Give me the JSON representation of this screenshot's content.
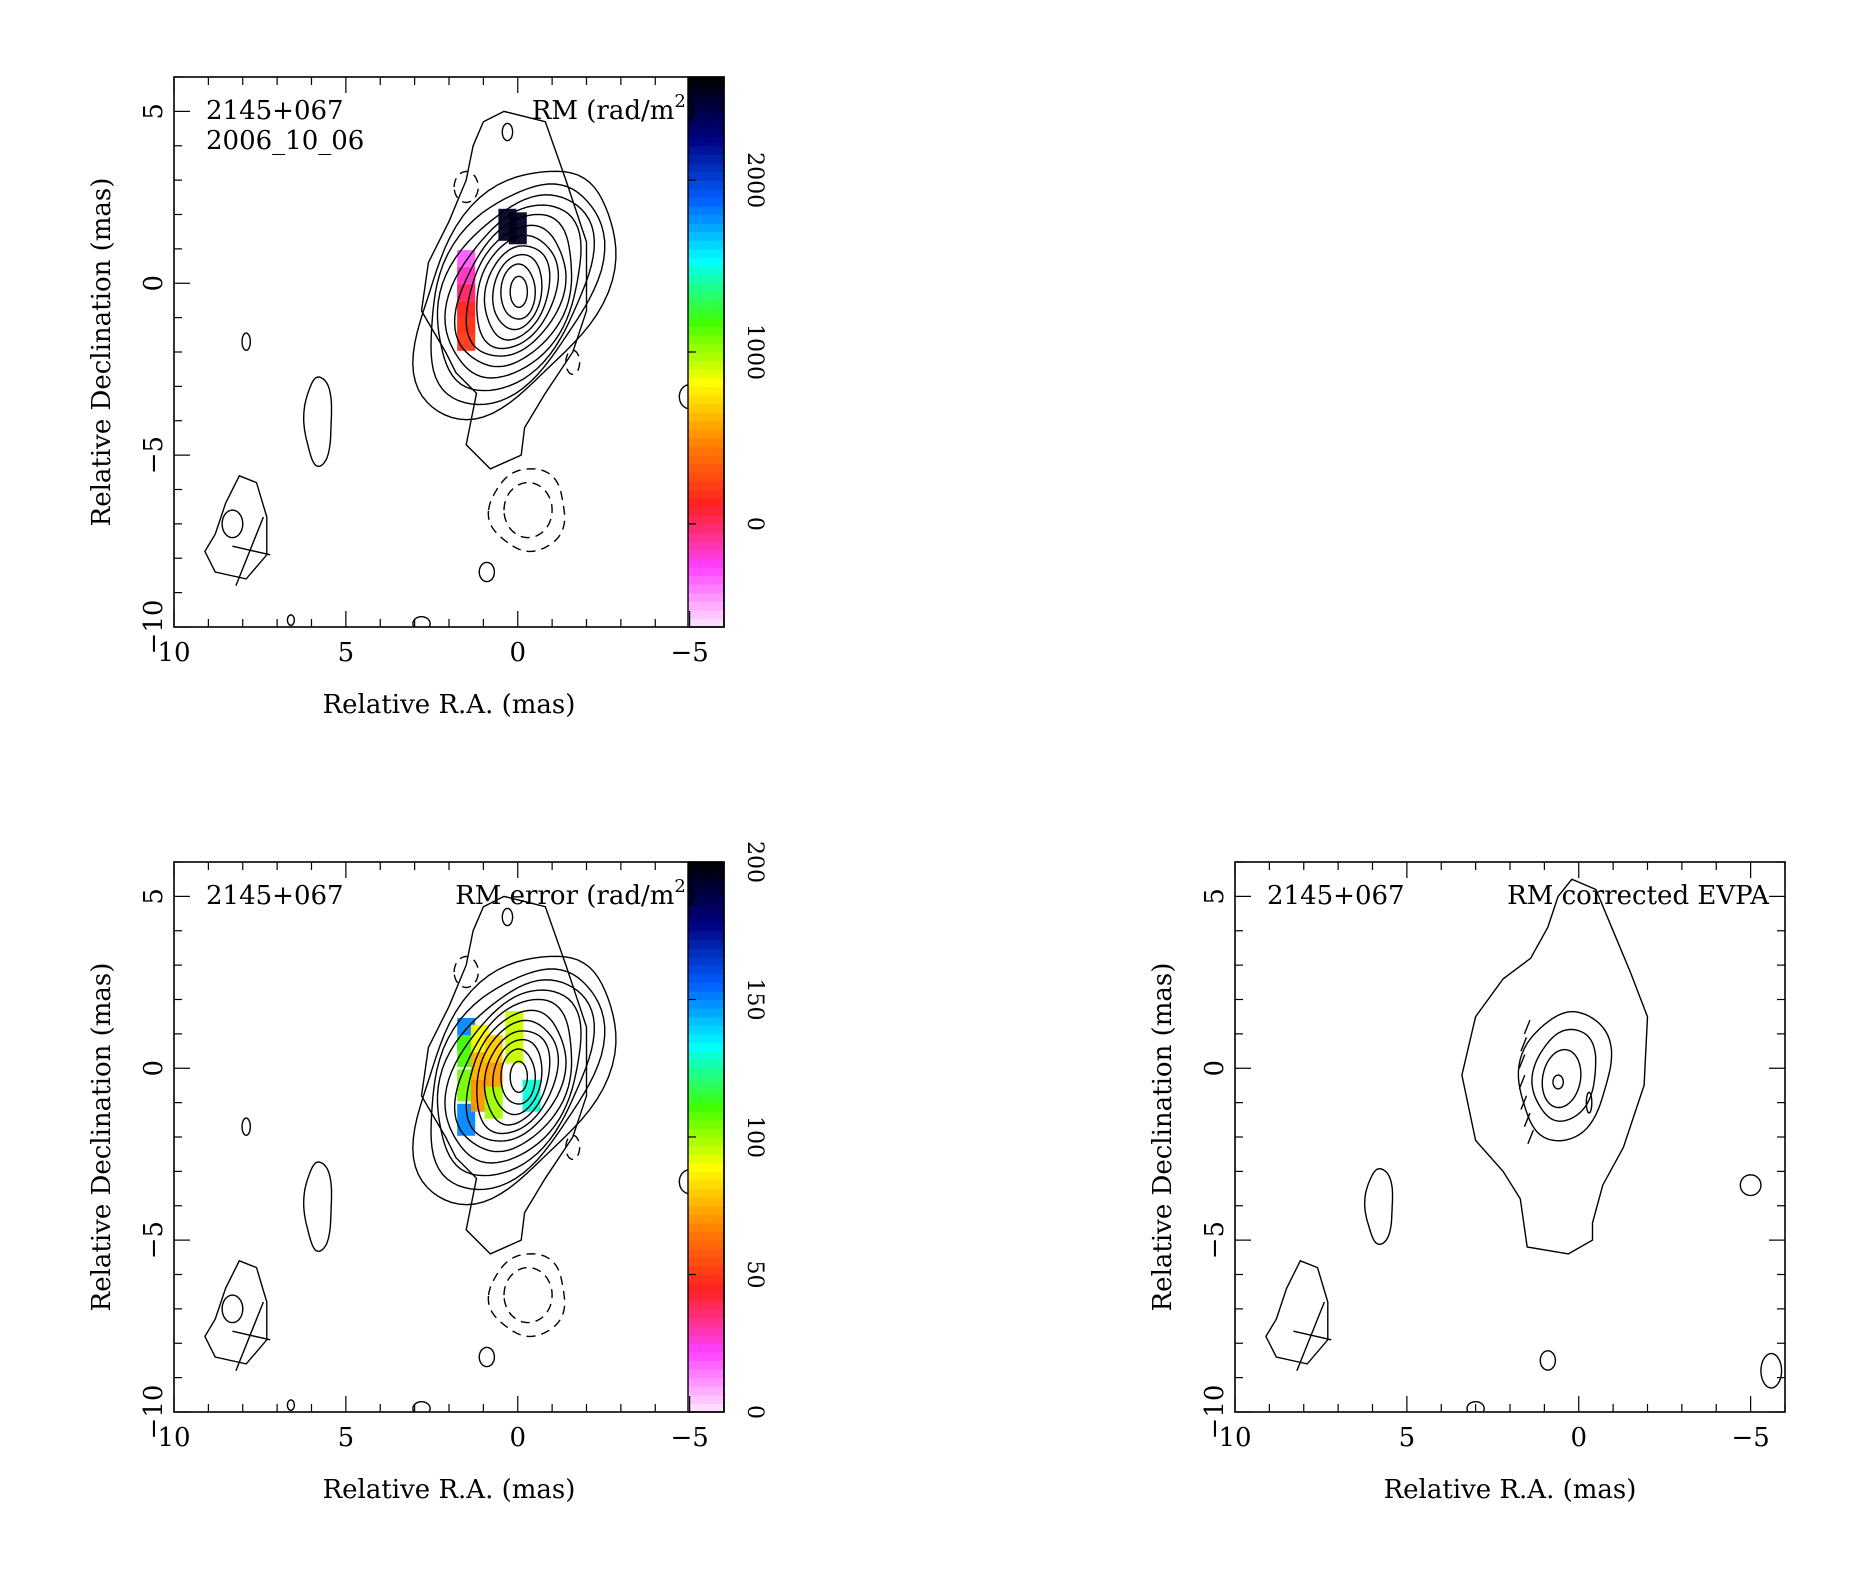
{
  "chart_data": [
    {
      "type": "contour",
      "title": "RM (rad/m2)",
      "source": "2145+067",
      "epoch": "2006_10_06",
      "xlabel": "Relative R.A. (mas)",
      "ylabel": "Relative Declination (mas)",
      "xlim": [
        10,
        -6
      ],
      "ylim": [
        -10,
        6
      ],
      "xticks": [
        10,
        5,
        0,
        -5
      ],
      "yticks": [
        5,
        0,
        -5,
        -10
      ],
      "colorbar": {
        "range": [
          -600,
          2600
        ],
        "ticks": [
          0,
          1000,
          2000
        ],
        "colors": [
          "#ffe8ff",
          "#ff40ff",
          "#ff2020",
          "#ff8000",
          "#ffff00",
          "#40ff00",
          "#00ffff",
          "#0060ff",
          "#000080",
          "#000000"
        ]
      },
      "rm_pixels": [
        {
          "x": 1.5,
          "y": 0.5,
          "v": -300
        },
        {
          "x": 1.5,
          "y": 0.0,
          "v": -150
        },
        {
          "x": 1.5,
          "y": -0.5,
          "v": 0
        },
        {
          "x": 1.5,
          "y": -1.0,
          "v": 150
        },
        {
          "x": 1.5,
          "y": -1.5,
          "v": 200
        },
        {
          "x": 0.3,
          "y": 1.7,
          "v": 2500
        },
        {
          "x": 0.0,
          "y": 1.6,
          "v": 2500
        }
      ]
    },
    {
      "type": "contour",
      "title": "RM error (rad/m2)",
      "source": "2145+067",
      "xlabel": "Relative R.A. (mas)",
      "ylabel": "Relative Declination (mas)",
      "xlim": [
        10,
        -6
      ],
      "ylim": [
        -10,
        6
      ],
      "xticks": [
        10,
        5,
        0,
        -5
      ],
      "yticks": [
        5,
        0,
        -5,
        -10
      ],
      "colorbar": {
        "range": [
          0,
          200
        ],
        "ticks": [
          0,
          50,
          100,
          150,
          200
        ],
        "colors": [
          "#ffe8ff",
          "#ff40ff",
          "#ff2020",
          "#ff8000",
          "#ffff00",
          "#40ff00",
          "#00ffff",
          "#0060ff",
          "#000080",
          "#000000"
        ]
      },
      "err_pixels": [
        {
          "x": 1.5,
          "y": 1.0,
          "v": 150
        },
        {
          "x": 1.5,
          "y": 0.5,
          "v": 110
        },
        {
          "x": 1.5,
          "y": -0.5,
          "v": 105
        },
        {
          "x": 1.5,
          "y": -1.5,
          "v": 150
        },
        {
          "x": 1.1,
          "y": 0.8,
          "v": 90
        },
        {
          "x": 1.1,
          "y": 0.0,
          "v": 75
        },
        {
          "x": 1.1,
          "y": -0.8,
          "v": 70
        },
        {
          "x": 0.7,
          "y": 0.5,
          "v": 80
        },
        {
          "x": 0.7,
          "y": -0.3,
          "v": 72
        },
        {
          "x": 0.7,
          "y": -1.0,
          "v": 100
        },
        {
          "x": 0.1,
          "y": 1.2,
          "v": 95
        },
        {
          "x": 0.1,
          "y": 0.6,
          "v": 95
        },
        {
          "x": -0.4,
          "y": -0.8,
          "v": 130
        }
      ]
    },
    {
      "type": "contour",
      "title": "RM corrected EVPA",
      "source": "2145+067",
      "xlabel": "Relative R.A. (mas)",
      "ylabel": "Relative Declination (mas)",
      "xlim": [
        10,
        -6
      ],
      "ylim": [
        -10,
        6
      ],
      "xticks": [
        10,
        5,
        0,
        -5
      ],
      "yticks": [
        5,
        0,
        -5,
        -10
      ]
    }
  ],
  "panels": [
    {
      "xlabel": "Relative R.A. (mas)",
      "ylabel": "Relative Declination (mas)",
      "source": "2145+067",
      "epoch": "2006_10_06",
      "title": "RM (rad/m",
      "title_sup": "2",
      "title_end": ")",
      "xticks": [
        "10",
        "5",
        "0",
        "−5"
      ],
      "yticks": [
        "5",
        "0",
        "−5",
        "−10"
      ],
      "cbar_ticks": [
        "0",
        "1000",
        "2000"
      ]
    },
    {
      "xlabel": "Relative R.A. (mas)",
      "ylabel": "Relative Declination (mas)",
      "source": "2145+067",
      "title": "RM error (rad/m",
      "title_sup": "2",
      "title_end": ")",
      "xticks": [
        "10",
        "5",
        "0",
        "−5"
      ],
      "yticks": [
        "5",
        "0",
        "−5",
        "−10"
      ],
      "cbar_ticks": [
        "0",
        "50",
        "100",
        "150",
        "200"
      ]
    },
    {
      "xlabel": "Relative R.A. (mas)",
      "ylabel": "Relative Declination (mas)",
      "source": "2145+067",
      "title": "RM corrected EVPA",
      "xticks": [
        "10",
        "5",
        "0",
        "−5"
      ],
      "yticks": [
        "5",
        "0",
        "−5",
        "−10"
      ]
    }
  ]
}
